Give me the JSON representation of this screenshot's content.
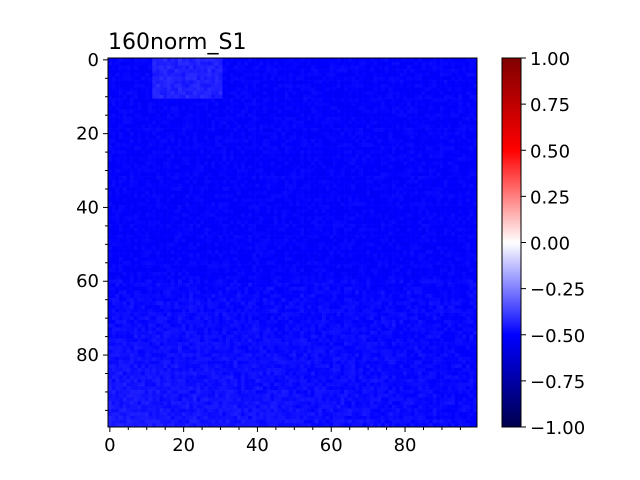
{
  "chart_data": {
    "type": "heatmap",
    "title": "160norm_S1",
    "xlabel": "",
    "ylabel": "",
    "rows": 100,
    "cols": 100,
    "xlim": [
      0,
      99
    ],
    "ylim": [
      99,
      0
    ],
    "x_ticks": [
      0,
      20,
      40,
      60,
      80
    ],
    "y_ticks": [
      0,
      20,
      40,
      60,
      80
    ],
    "x_tick_labels": [
      "0",
      "20",
      "40",
      "60",
      "80"
    ],
    "y_tick_labels": [
      "0",
      "20",
      "40",
      "60",
      "80"
    ],
    "colormap": "seismic",
    "colormap_stops": [
      "#00004c",
      "#0000ff",
      "#ffffff",
      "#ff0000",
      "#7f0000"
    ],
    "vmin": -1.0,
    "vmax": 1.0,
    "colorbar_ticks": [
      1.0,
      0.75,
      0.5,
      0.25,
      0.0,
      -0.25,
      -0.5,
      -0.75,
      -1.0
    ],
    "colorbar_tick_labels": [
      "1.00",
      "0.75",
      "0.50",
      "0.25",
      "0.00",
      "−0.25",
      "−0.50",
      "−0.75",
      "−1.00"
    ],
    "typical_value": -0.5,
    "value_range": [
      -0.53,
      -0.42
    ],
    "patches": [
      {
        "region": "top-left block, rows 0-10, cols 12-30",
        "approx_value": -0.45
      },
      {
        "region": "lower-left band, rows 60-99",
        "approx_value": -0.46
      }
    ],
    "grid": false,
    "legend": "colorbar-right"
  }
}
